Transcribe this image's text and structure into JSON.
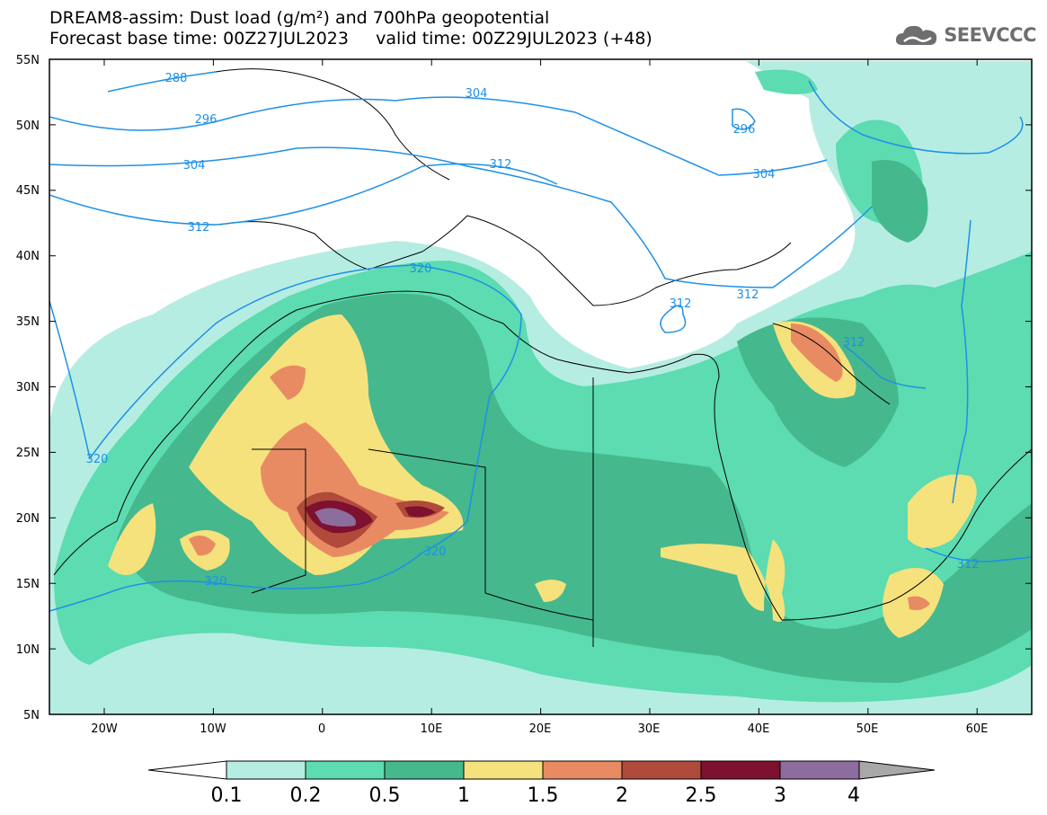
{
  "header": {
    "title_line1": "DREAM8-assim: Dust load (g/m²) and 700hPa geopotential",
    "title_line2": "Forecast base time: 00Z27JUL2023     valid time: 00Z29JUL2023 (+48)",
    "logo_text": "SEEVCCC"
  },
  "map": {
    "lat_labels": [
      "55N",
      "50N",
      "45N",
      "40N",
      "35N",
      "30N",
      "25N",
      "20N",
      "15N",
      "10N",
      "5N"
    ],
    "lon_labels": [
      "20W",
      "10W",
      "0",
      "10E",
      "20E",
      "30E",
      "40E",
      "50E",
      "60E"
    ],
    "contour_labels": [
      "288",
      "296",
      "304",
      "312",
      "320",
      "304",
      "312",
      "296",
      "304",
      "312",
      "312",
      "312",
      "320",
      "320",
      "320",
      "312"
    ]
  },
  "legend": {
    "values": [
      "0.1",
      "0.2",
      "0.5",
      "1",
      "1.5",
      "2",
      "2.5",
      "3",
      "4"
    ],
    "colors": [
      "#ffffff",
      "#b6ede2",
      "#5cdcb0",
      "#45b88e",
      "#f5e27c",
      "#e88b63",
      "#b04a3a",
      "#7e1030",
      "#8d6c9e",
      "#a8a8a8"
    ]
  }
}
